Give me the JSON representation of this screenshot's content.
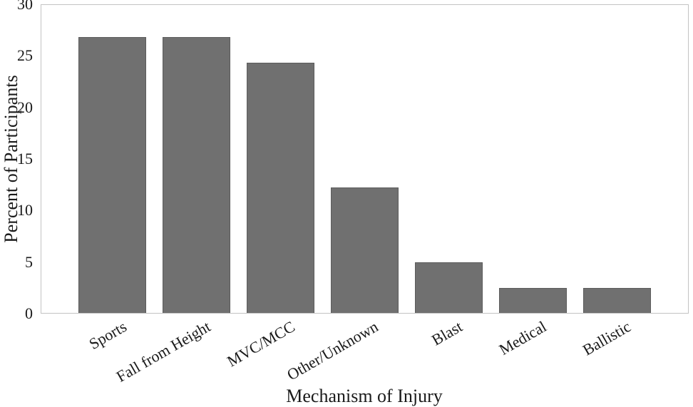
{
  "chart_data": {
    "type": "bar",
    "categories": [
      "Sports",
      "Fall from Height",
      "MVC/MCC",
      "Other/Unknown",
      "Blast",
      "Medical",
      "Ballistic"
    ],
    "values": [
      26.9,
      26.9,
      24.4,
      12.2,
      4.9,
      2.4,
      2.4
    ],
    "xlabel": "Mechanism of Injury",
    "ylabel": "Percent of Participants",
    "ylim": [
      0,
      30
    ],
    "yticks": [
      0,
      5,
      10,
      15,
      20,
      25,
      30
    ],
    "grid": false,
    "legend": "none",
    "colors": {
      "bar_fill": "#707070",
      "bar_border": "#5c5c5c",
      "frame": "#c3c3c3",
      "text": "#1a1a1a",
      "background": "#ffffff"
    }
  }
}
